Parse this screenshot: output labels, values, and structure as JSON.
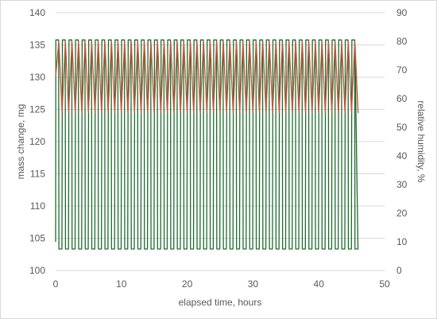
{
  "chart_data": {
    "type": "line",
    "title": "",
    "xlabel": "elapsed time, hours",
    "ylabel_left": "mass change, mg",
    "ylabel_right": "relative humidity, %",
    "xlim": [
      0,
      50
    ],
    "ylim_left": [
      100,
      140
    ],
    "ylim_right": [
      0,
      90
    ],
    "x_ticks": [
      "0",
      "10",
      "20",
      "30",
      "40",
      "50"
    ],
    "y_ticks_left": [
      "100",
      "105",
      "110",
      "115",
      "120",
      "125",
      "130",
      "135",
      "140"
    ],
    "y_ticks_right": [
      "0",
      "10",
      "20",
      "30",
      "40",
      "50",
      "60",
      "70",
      "80",
      "90"
    ],
    "grid": "horizontal",
    "legend": "none",
    "series": [
      {
        "axis": "right",
        "color": "#1e6b2e",
        "shape": "square-wave",
        "x_start": 0,
        "x_end": 45.5,
        "period": 1,
        "low": 7.5,
        "high": 80.5,
        "first_value": 10
      },
      {
        "axis": "left",
        "color": "#c0573a",
        "shape": "sawtooth",
        "x_start": 0,
        "x_end": 45.5,
        "period": 1,
        "low": 124.5,
        "high": 135.5,
        "first_value": 130
      }
    ]
  }
}
